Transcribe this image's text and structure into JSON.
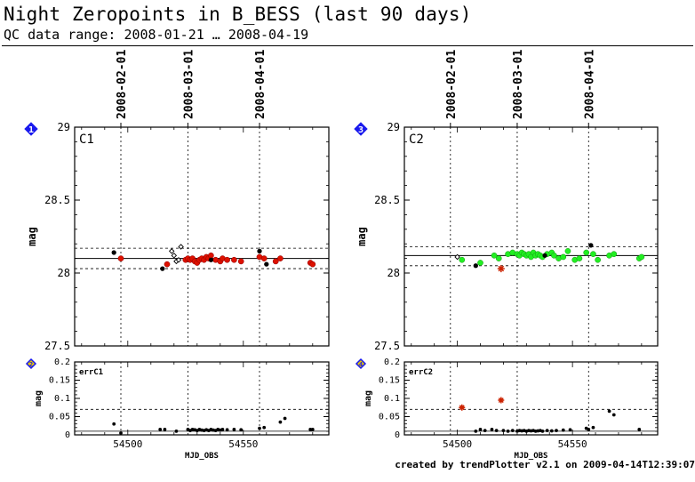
{
  "header": {
    "title": "Night Zeropoints in B_BESS (last 90 days)",
    "subtitle": "QC data range: 2008-01-21 … 2008-04-19"
  },
  "footer": {
    "credit": "created by trendPlotter v2.1 on 2009-04-14T12:39:07"
  },
  "colors": {
    "axis": "#000000",
    "good_point": "#dd1100",
    "good_point_c2": "#22ee22",
    "other_point": "#000000",
    "outlier_star": "#cc2200",
    "badge": "#1a1aee",
    "badge_small": "#e8c800"
  },
  "chart_data": [
    {
      "type": "scatter",
      "panel": "C1",
      "badge": "1",
      "ylabel": "mag",
      "xlim": [
        54477,
        54587
      ],
      "ylim": [
        27.5,
        29
      ],
      "yticks": [
        "27.5",
        "28",
        "28.5",
        "29"
      ],
      "date_ticks": [
        {
          "label": "2008-02-01",
          "mjd": 54497
        },
        {
          "label": "2008-03-01",
          "mjd": 54526
        },
        {
          "label": "2008-04-01",
          "mjd": 54557
        }
      ],
      "hlines": {
        "solid": 28.1,
        "dashed": [
          28.03,
          28.17
        ]
      },
      "series": [
        {
          "kind": "filled-red",
          "x": [
            54497,
            54517,
            54525,
            54526,
            54527,
            54528,
            54529,
            54530,
            54531,
            54532,
            54533,
            54534,
            54535,
            54536,
            54538,
            54540,
            54541,
            54543,
            54546,
            54549,
            54557,
            54559,
            54564,
            54566,
            54579,
            54580
          ],
          "y": [
            28.1,
            28.06,
            28.09,
            28.1,
            28.09,
            28.1,
            28.08,
            28.07,
            28.09,
            28.1,
            28.09,
            28.11,
            28.1,
            28.12,
            28.09,
            28.08,
            28.1,
            28.09,
            28.09,
            28.08,
            28.11,
            28.1,
            28.08,
            28.1,
            28.07,
            28.06
          ]
        },
        {
          "kind": "filled-black",
          "x": [
            54494,
            54515,
            54536,
            54557,
            54560
          ],
          "y": [
            28.14,
            28.03,
            28.09,
            28.15,
            28.06
          ]
        },
        {
          "kind": "open-diamond",
          "x": [
            54519,
            54520,
            54521,
            54522,
            54523
          ],
          "y": [
            28.15,
            28.12,
            28.08,
            28.09,
            28.18
          ]
        }
      ]
    },
    {
      "type": "scatter",
      "panel": "errC1",
      "badge": "2",
      "ylabel": "mag",
      "xlabel": "MJD_OBS",
      "xlim": [
        54477,
        54587
      ],
      "ylim": [
        0,
        0.2
      ],
      "yticks": [
        "0",
        "0.05",
        "0.1",
        "0.15",
        "0.2"
      ],
      "xticks": [
        "54500",
        "54550"
      ],
      "xtick_values": [
        54500,
        54550
      ],
      "date_ticks_mjd": [
        54497,
        54526,
        54557
      ],
      "hlines": {
        "solid": 0.01,
        "dashed": [
          0.07
        ]
      },
      "series": [
        {
          "kind": "filled-black",
          "x": [
            54494,
            54497,
            54514,
            54516,
            54521,
            54526,
            54527,
            54528,
            54529,
            54530,
            54531,
            54532,
            54533,
            54534,
            54535,
            54536,
            54537,
            54538,
            54539,
            54540,
            54541,
            54543,
            54546,
            54549,
            54557,
            54559,
            54566,
            54568,
            54579,
            54580
          ],
          "y": [
            0.03,
            0.005,
            0.015,
            0.015,
            0.01,
            0.015,
            0.012,
            0.015,
            0.014,
            0.012,
            0.015,
            0.013,
            0.012,
            0.014,
            0.012,
            0.015,
            0.013,
            0.012,
            0.015,
            0.013,
            0.015,
            0.014,
            0.015,
            0.014,
            0.018,
            0.02,
            0.035,
            0.045,
            0.015,
            0.015
          ]
        }
      ]
    },
    {
      "type": "scatter",
      "panel": "C2",
      "badge": "3",
      "ylabel": "mag",
      "xlim": [
        54477,
        54587
      ],
      "ylim": [
        27.5,
        29
      ],
      "yticks": [
        "27.5",
        "28",
        "28.5",
        "29"
      ],
      "date_ticks": [
        {
          "label": "2008-02-01",
          "mjd": 54497
        },
        {
          "label": "2008-03-01",
          "mjd": 54526
        },
        {
          "label": "2008-04-01",
          "mjd": 54557
        }
      ],
      "hlines": {
        "solid": 28.12,
        "dashed": [
          28.05,
          28.18
        ]
      },
      "series": [
        {
          "kind": "filled-green",
          "x": [
            54502,
            54510,
            54516,
            54518,
            54522,
            54524,
            54526,
            54527,
            54528,
            54529,
            54530,
            54531,
            54532,
            54533,
            54534,
            54535,
            54536,
            54537,
            54539,
            54541,
            54542,
            54544,
            54546,
            54548,
            54551,
            54553,
            54556,
            54559,
            54561,
            54566,
            54568,
            54579,
            54580
          ],
          "y": [
            28.09,
            28.07,
            28.12,
            28.1,
            28.13,
            28.14,
            28.13,
            28.12,
            28.14,
            28.13,
            28.12,
            28.13,
            28.11,
            28.14,
            28.12,
            28.13,
            28.12,
            28.11,
            28.13,
            28.14,
            28.12,
            28.1,
            28.11,
            28.15,
            28.09,
            28.1,
            28.14,
            28.13,
            28.09,
            28.12,
            28.13,
            28.1,
            28.11
          ]
        },
        {
          "kind": "filled-black",
          "x": [
            54508,
            54538,
            54558
          ],
          "y": [
            28.05,
            28.12,
            28.19
          ]
        },
        {
          "kind": "open-diamond",
          "x": [
            54500
          ],
          "y": [
            28.11
          ]
        },
        {
          "kind": "red-star",
          "x": [
            54519
          ],
          "y": [
            28.03
          ]
        }
      ]
    },
    {
      "type": "scatter",
      "panel": "errC2",
      "badge": "4",
      "ylabel": "mag",
      "xlabel": "MJD_OBS",
      "xlim": [
        54477,
        54587
      ],
      "ylim": [
        0,
        0.2
      ],
      "yticks": [
        "0",
        "0.05",
        "0.1",
        "0.15",
        "0.2"
      ],
      "xticks": [
        "54500",
        "54550"
      ],
      "xtick_values": [
        54500,
        54550
      ],
      "date_ticks_mjd": [
        54497,
        54526,
        54557
      ],
      "hlines": {
        "solid": 0.01,
        "dashed": [
          0.07
        ]
      },
      "series": [
        {
          "kind": "filled-black",
          "x": [
            54508,
            54510,
            54512,
            54515,
            54517,
            54520,
            54522,
            54524,
            54526,
            54527,
            54528,
            54529,
            54530,
            54531,
            54532,
            54533,
            54534,
            54535,
            54536,
            54537,
            54539,
            54541,
            54543,
            54546,
            54549,
            54556,
            54557,
            54559,
            54566,
            54568,
            54579
          ],
          "y": [
            0.01,
            0.015,
            0.012,
            0.015,
            0.012,
            0.012,
            0.01,
            0.012,
            0.01,
            0.012,
            0.011,
            0.012,
            0.01,
            0.012,
            0.011,
            0.012,
            0.01,
            0.011,
            0.012,
            0.01,
            0.012,
            0.011,
            0.012,
            0.013,
            0.014,
            0.018,
            0.015,
            0.02,
            0.065,
            0.055,
            0.015
          ]
        },
        {
          "kind": "red-star",
          "x": [
            54502,
            54519
          ],
          "y": [
            0.075,
            0.095
          ]
        }
      ]
    }
  ]
}
